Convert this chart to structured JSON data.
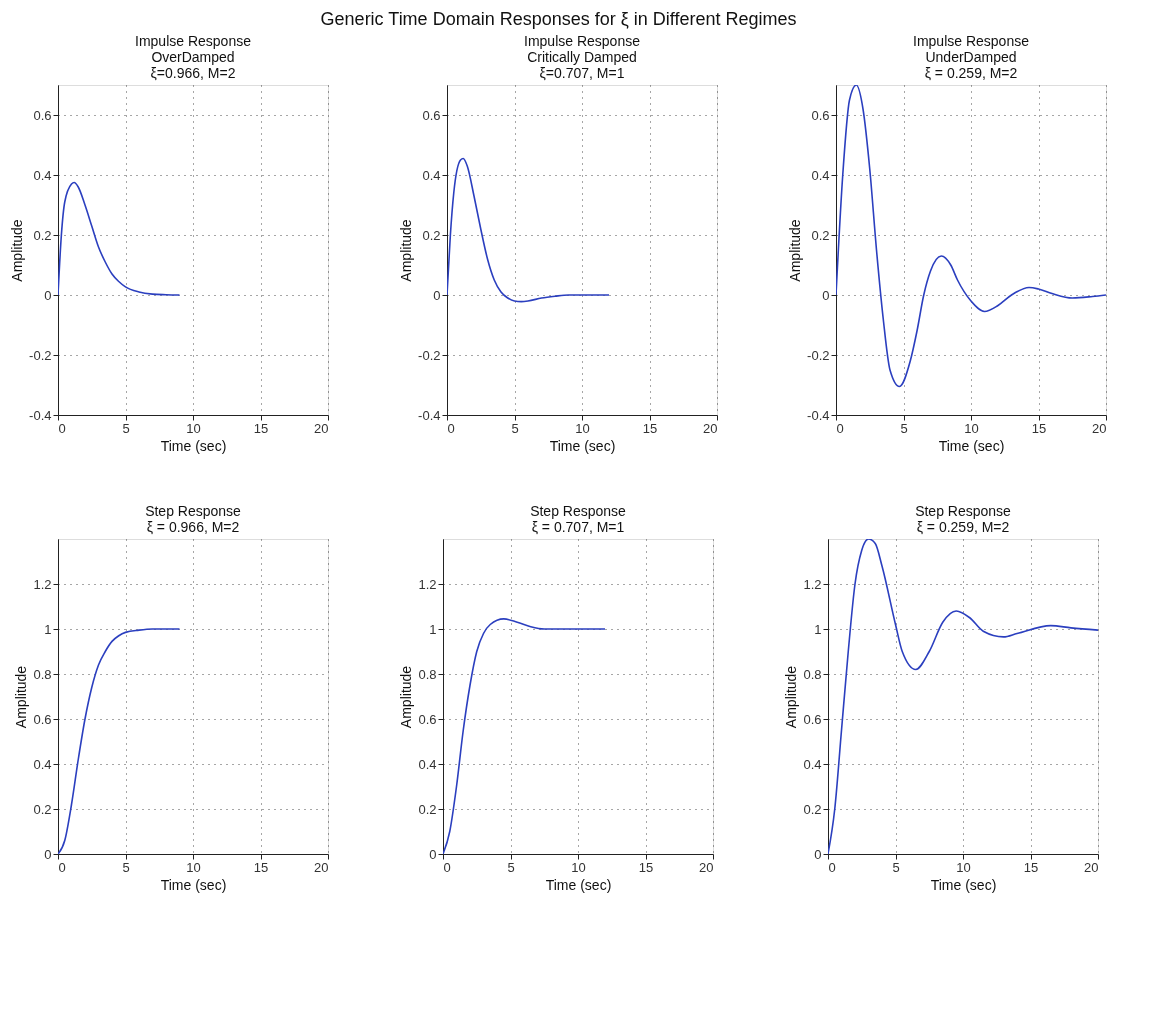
{
  "chart_data": [
    {
      "type": "line",
      "title": "Impulse Response\nOverDamped\nξ=0.966, M=2",
      "xlabel": "Time (sec)",
      "ylabel": "Amplitude",
      "annotations": [
        "Generic Time Domain Responses for ξ in Different  Regimes"
      ],
      "xlim": [
        0,
        20
      ],
      "xticks": [
        0,
        5,
        10,
        15,
        20
      ],
      "ylim": [
        -0.4,
        0.7
      ],
      "yticks": [
        -0.4,
        -0.2,
        0,
        0.2,
        0.4,
        0.6
      ],
      "grid": true,
      "x": [
        0,
        0.25,
        0.5,
        1,
        1.2,
        1.5,
        2,
        2.5,
        3,
        3.5,
        4,
        4.5,
        5,
        6,
        7,
        8,
        9
      ],
      "series": [
        {
          "color": "#2b3fbf",
          "values": [
            0,
            0.2,
            0.31,
            0.37,
            0.375,
            0.36,
            0.3,
            0.23,
            0.16,
            0.11,
            0.07,
            0.045,
            0.027,
            0.01,
            0.003,
            0.001,
            0
          ]
        }
      ]
    },
    {
      "type": "line",
      "title": "Impulse Response\nCritically Damped\nξ=0.707, M=1",
      "xlabel": "Time (sec)",
      "ylabel": "Amplitude",
      "xlim": [
        0,
        20
      ],
      "xticks": [
        0,
        5,
        10,
        15,
        20
      ],
      "ylim": [
        -0.4,
        0.7
      ],
      "yticks": [
        -0.4,
        -0.2,
        0,
        0.2,
        0.4,
        0.6
      ],
      "grid": true,
      "x": [
        0,
        0.25,
        0.5,
        1,
        1.2,
        1.5,
        2,
        2.5,
        3,
        3.5,
        4,
        4.5,
        5,
        5.5,
        6,
        7,
        8,
        9,
        10,
        12
      ],
      "series": [
        {
          "color": "#2b3fbf",
          "values": [
            0,
            0.2,
            0.34,
            0.45,
            0.455,
            0.43,
            0.33,
            0.22,
            0.12,
            0.05,
            0.01,
            -0.01,
            -0.02,
            -0.022,
            -0.02,
            -0.01,
            -0.004,
            0,
            0,
            0
          ]
        }
      ]
    },
    {
      "type": "line",
      "title": "Impulse Response\nUnderDamped\nξ = 0.259, M=2",
      "xlabel": "Time (sec)",
      "ylabel": "Amplitude",
      "xlim": [
        0,
        20
      ],
      "xticks": [
        0,
        5,
        10,
        15,
        20
      ],
      "ylim": [
        -0.4,
        0.7
      ],
      "yticks": [
        -0.4,
        -0.2,
        0,
        0.2,
        0.4,
        0.6
      ],
      "grid": true,
      "x": [
        0,
        0.5,
        1,
        1.5,
        2,
        2.5,
        3,
        3.5,
        4,
        4.7,
        5.5,
        6,
        6.5,
        7,
        7.8,
        8.5,
        9,
        10,
        11,
        12,
        13,
        14.3,
        15,
        16,
        17.5,
        19,
        20
      ],
      "series": [
        {
          "color": "#2b3fbf",
          "values": [
            0,
            0.4,
            0.65,
            0.7,
            0.62,
            0.42,
            0.15,
            -0.08,
            -0.25,
            -0.305,
            -0.22,
            -0.12,
            0,
            0.08,
            0.13,
            0.1,
            0.05,
            -0.02,
            -0.055,
            -0.035,
            0,
            0.025,
            0.02,
            0.005,
            -0.01,
            -0.005,
            0
          ]
        }
      ]
    },
    {
      "type": "line",
      "title": "Step Response\nξ = 0.966, M=2",
      "xlabel": "Time (sec)",
      "ylabel": "Amplitude",
      "xlim": [
        0,
        20
      ],
      "xticks": [
        0,
        5,
        10,
        15,
        20
      ],
      "ylim": [
        0,
        1.4
      ],
      "yticks": [
        0,
        0.2,
        0.4,
        0.6,
        0.8,
        1,
        1.2
      ],
      "grid": true,
      "x": [
        0,
        0.5,
        1,
        1.5,
        2,
        2.5,
        3,
        3.5,
        4,
        4.5,
        5,
        6,
        7,
        9
      ],
      "series": [
        {
          "color": "#2b3fbf",
          "values": [
            0,
            0.06,
            0.22,
            0.42,
            0.6,
            0.74,
            0.84,
            0.9,
            0.945,
            0.97,
            0.985,
            0.995,
            1,
            1
          ]
        }
      ]
    },
    {
      "type": "line",
      "title": "Step Response\nξ = 0.707, M=1",
      "xlabel": "Time (sec)",
      "ylabel": "Amplitude",
      "xlim": [
        0,
        20
      ],
      "xticks": [
        0,
        5,
        10,
        15,
        20
      ],
      "ylim": [
        0,
        1.4
      ],
      "yticks": [
        0,
        0.2,
        0.4,
        0.6,
        0.8,
        1,
        1.2
      ],
      "grid": true,
      "x": [
        0,
        0.5,
        1,
        1.5,
        2,
        2.5,
        3,
        3.5,
        4.5,
        5.5,
        6.5,
        7.5,
        9,
        12
      ],
      "series": [
        {
          "color": "#2b3fbf",
          "values": [
            0,
            0.1,
            0.3,
            0.55,
            0.75,
            0.9,
            0.98,
            1.02,
            1.045,
            1.03,
            1.01,
            1,
            1,
            1
          ]
        }
      ]
    },
    {
      "type": "line",
      "title": "Step Response\nξ = 0.259, M=2",
      "xlabel": "Time (sec)",
      "ylabel": "Amplitude",
      "xlim": [
        0,
        20
      ],
      "xticks": [
        0,
        5,
        10,
        15,
        20
      ],
      "ylim": [
        0,
        1.4
      ],
      "yticks": [
        0,
        0.2,
        0.4,
        0.6,
        0.8,
        1,
        1.2
      ],
      "grid": true,
      "x": [
        0,
        0.5,
        1,
        1.5,
        2,
        2.5,
        3,
        3.5,
        4,
        5,
        5.5,
        6.5,
        7.5,
        8.5,
        9.5,
        10.5,
        11.5,
        13,
        14,
        16.5,
        18,
        20
      ],
      "series": [
        {
          "color": "#2b3fbf",
          "values": [
            0,
            0.2,
            0.55,
            0.9,
            1.2,
            1.35,
            1.4,
            1.38,
            1.28,
            1.02,
            0.9,
            0.82,
            0.9,
            1.03,
            1.08,
            1.05,
            0.99,
            0.965,
            0.98,
            1.015,
            1.005,
            0.995
          ]
        }
      ]
    }
  ]
}
